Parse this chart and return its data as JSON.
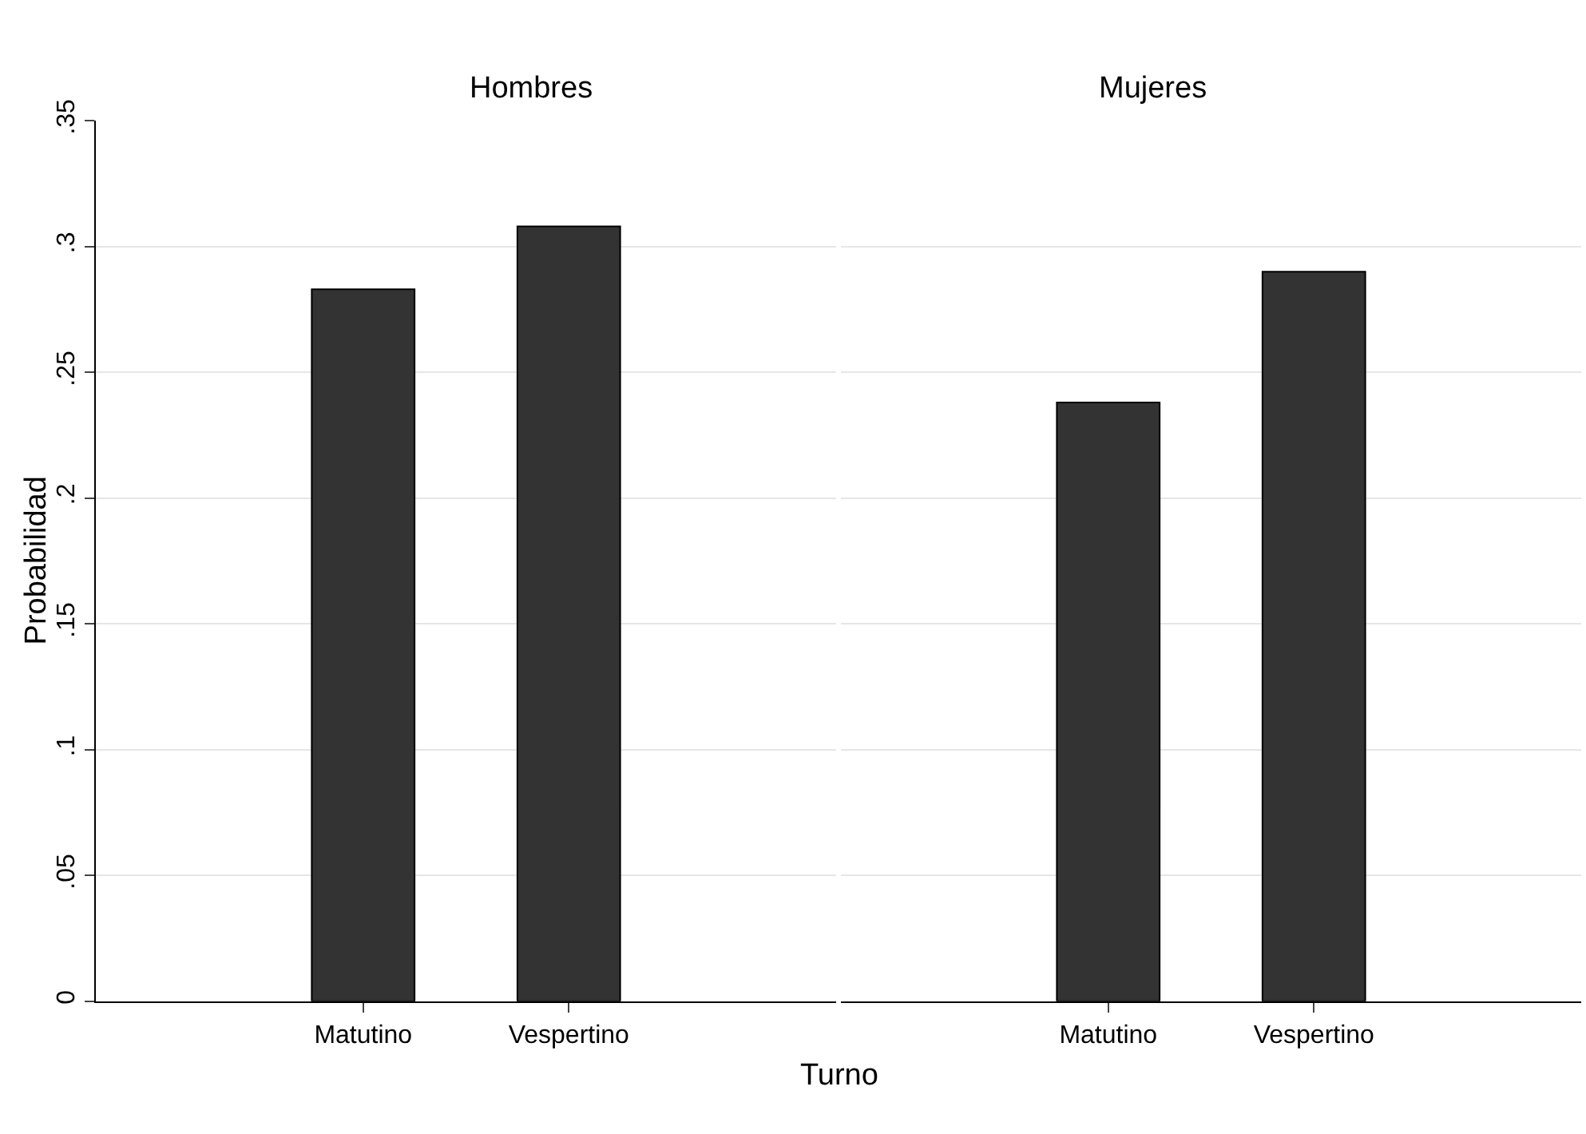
{
  "chart_data": [
    {
      "type": "bar",
      "title": "Hombres",
      "ylabel": "Probabilidad",
      "xlabel": "Turno",
      "categories": [
        "Matutino",
        "Vespertino"
      ],
      "values": [
        0.283,
        0.308
      ],
      "color": "#333333",
      "ylim": [
        0,
        0.35
      ],
      "yticks": [
        0,
        {
          "value": 0.05,
          "label": ".05"
        },
        {
          "value": 0.1,
          "label": ".1"
        },
        {
          "value": 0.15,
          "label": ".15"
        },
        {
          "value": 0.2,
          "label": ".2"
        },
        {
          "value": 0.25,
          "label": ".25"
        },
        {
          "value": 0.3,
          "label": ".3"
        },
        {
          "value": 0.35,
          "label": ".35"
        }
      ],
      "grid": "y",
      "legend": false
    },
    {
      "type": "bar",
      "title": "Mujeres",
      "categories": [
        "Matutino",
        "Vespertino"
      ],
      "values": [
        0.238,
        0.29
      ],
      "color": "#333333",
      "ylim": [
        0,
        0.35
      ],
      "yticks": [
        {
          "value": 0,
          "label": null
        },
        {
          "value": 0.05,
          "label": null
        },
        {
          "value": 0.1,
          "label": null
        },
        {
          "value": 0.15,
          "label": null
        },
        {
          "value": 0.2,
          "label": null
        },
        {
          "value": 0.25,
          "label": null
        },
        {
          "value": 0.3,
          "label": null
        },
        {
          "value": 0.35,
          "label": null
        }
      ],
      "grid": "y",
      "legend": false,
      "tick_labels": "x"
    }
  ]
}
